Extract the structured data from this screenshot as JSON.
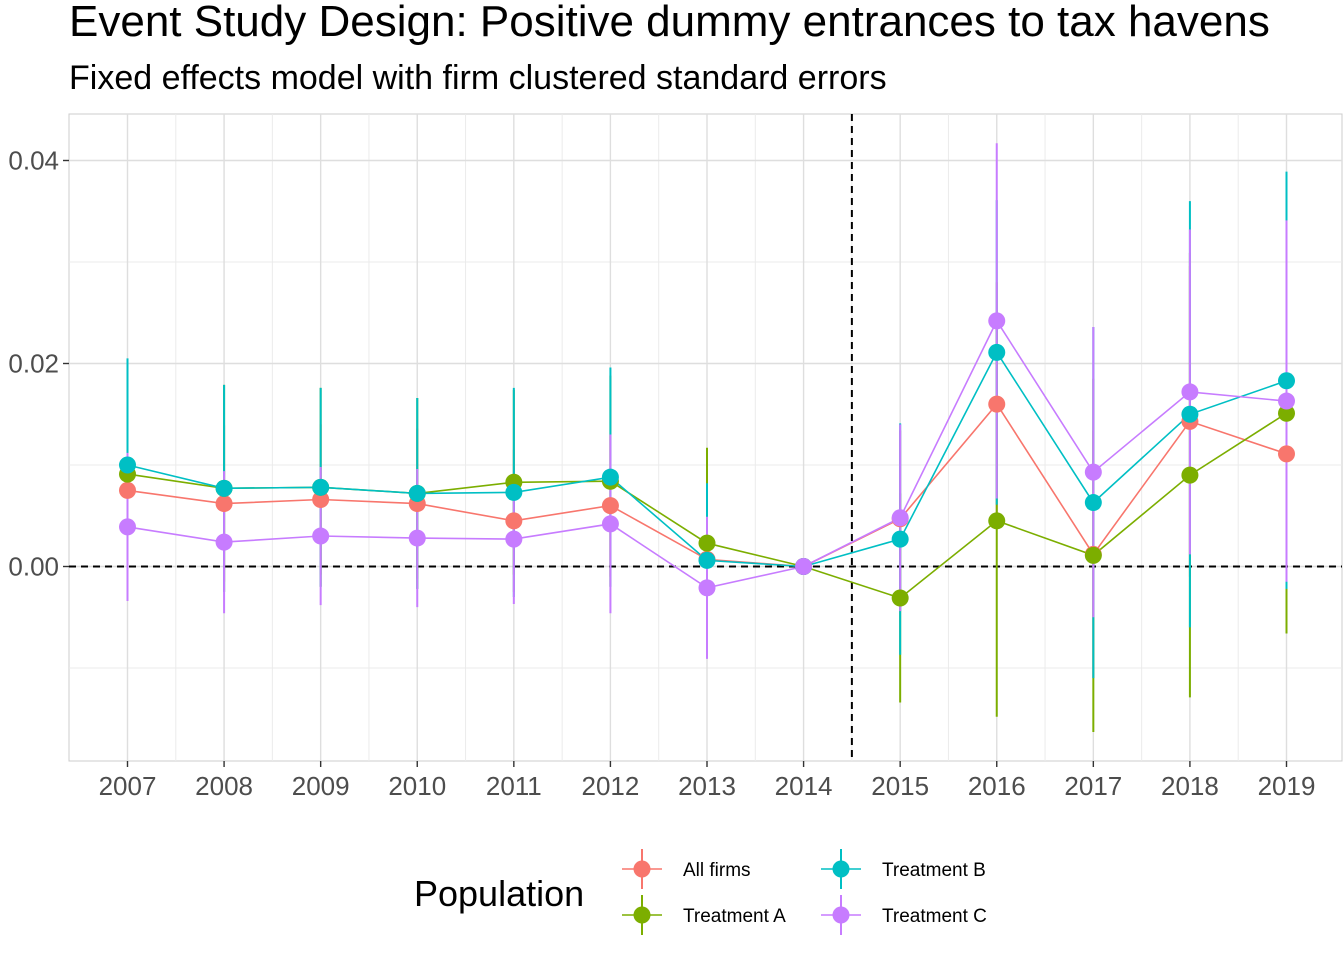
{
  "chart_data": {
    "type": "line",
    "title": "Event Study Design: Positive dummy entrances to tax havens",
    "subtitle": "Fixed effects model with firm clustered standard errors",
    "xlabel": "",
    "ylabel": "",
    "x": [
      2007,
      2008,
      2009,
      2010,
      2011,
      2012,
      2013,
      2014,
      2015,
      2016,
      2017,
      2018,
      2019
    ],
    "x_tick_labels": [
      "2007",
      "2008",
      "2009",
      "2010",
      "2011",
      "2012",
      "2013",
      "2014",
      "2015",
      "2016",
      "2017",
      "2018",
      "2019"
    ],
    "ylim": [
      -0.019,
      0.044
    ],
    "y_ticks": [
      0.0,
      0.02,
      0.04
    ],
    "y_tick_labels": [
      "0.00",
      "0.02",
      "0.04"
    ],
    "reference_lines": {
      "horizontal": 0.0,
      "vertical": 2014.5
    },
    "grid": true,
    "legend": {
      "title": "Population",
      "placement": "bottom"
    },
    "series": [
      {
        "name": "All firms",
        "color": "#F8766D",
        "values": [
          0.0075,
          0.0062,
          0.0066,
          0.0062,
          0.0045,
          0.006,
          0.0007,
          0.0,
          0.0047,
          0.016,
          0.0012,
          0.0143,
          0.0111
        ],
        "lower": [
          0.0005,
          -0.0015,
          -0.0008,
          -0.0012,
          -0.0025,
          -0.001,
          -0.006,
          0.0,
          -0.004,
          0.004,
          -0.011,
          -0.001,
          0.001
        ],
        "upper": [
          0.0145,
          0.0139,
          0.014,
          0.0136,
          0.0115,
          0.013,
          0.0074,
          0.0,
          0.0134,
          0.028,
          0.0134,
          0.0296,
          0.0212
        ]
      },
      {
        "name": "Treatment A",
        "color": "#7CAE00",
        "values": [
          0.0091,
          0.0077,
          0.0078,
          0.0072,
          0.0083,
          0.0084,
          0.0023,
          0.0,
          -0.0031,
          0.0045,
          0.0011,
          0.009,
          0.0151
        ],
        "lower": [
          -0.002,
          -0.0025,
          -0.002,
          -0.0022,
          -0.0008,
          -0.002,
          -0.007,
          0.0,
          -0.0134,
          -0.0148,
          -0.0163,
          -0.0129,
          -0.0066
        ],
        "upper": [
          0.0202,
          0.0179,
          0.0176,
          0.0166,
          0.0174,
          0.0188,
          0.0117,
          0.0,
          0.0072,
          0.0238,
          0.0185,
          0.0309,
          0.0368
        ]
      },
      {
        "name": "Treatment B",
        "color": "#00BFC4",
        "values": [
          0.01,
          0.0077,
          0.0078,
          0.0072,
          0.0073,
          0.0088,
          0.0006,
          0.0,
          0.0027,
          0.0211,
          0.0063,
          0.015,
          0.0183
        ],
        "lower": [
          -0.0005,
          -0.0025,
          -0.002,
          -0.0022,
          -0.003,
          -0.002,
          -0.007,
          0.0,
          -0.0087,
          0.0061,
          -0.011,
          -0.006,
          -0.0022
        ],
        "upper": [
          0.0205,
          0.0179,
          0.0176,
          0.0166,
          0.0176,
          0.0196,
          0.0082,
          0.0,
          0.0141,
          0.0361,
          0.0236,
          0.036,
          0.0389
        ]
      },
      {
        "name": "Treatment C",
        "color": "#C77CFF",
        "values": [
          0.0039,
          0.0024,
          0.003,
          0.0028,
          0.0027,
          0.0042,
          -0.0021,
          0.0,
          0.0048,
          0.0242,
          0.0093,
          0.0172,
          0.0163
        ],
        "lower": [
          -0.0034,
          -0.0046,
          -0.0038,
          -0.004,
          -0.0037,
          -0.0046,
          -0.0091,
          0.0,
          -0.0044,
          0.0067,
          -0.005,
          0.0012,
          -0.0015
        ],
        "upper": [
          0.0112,
          0.0094,
          0.0098,
          0.0096,
          0.0091,
          0.013,
          0.0049,
          0.0,
          0.014,
          0.0417,
          0.0236,
          0.0332,
          0.0341
        ]
      }
    ]
  }
}
